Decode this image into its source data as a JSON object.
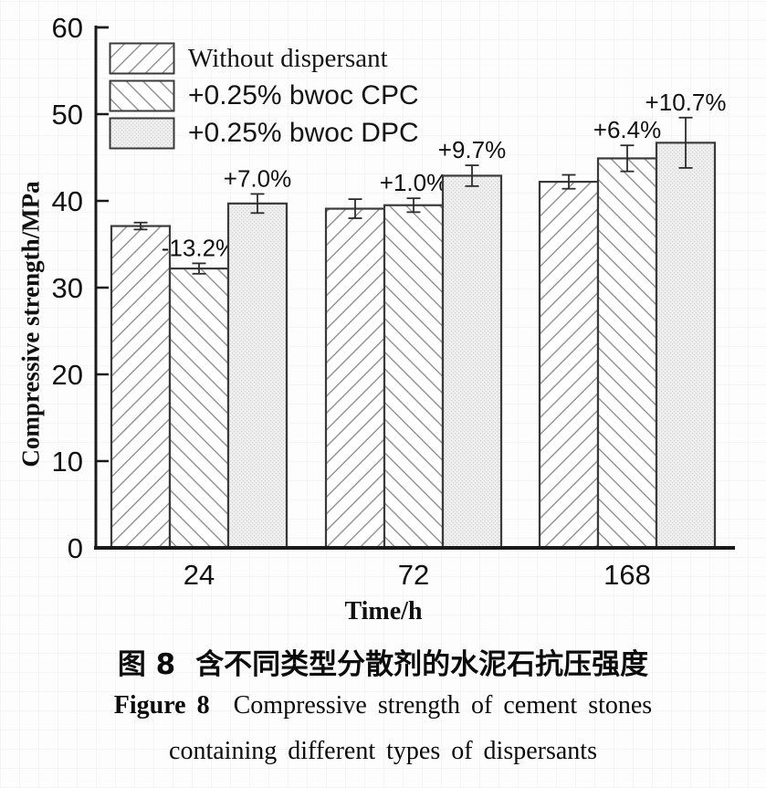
{
  "chart_data": {
    "type": "bar",
    "title": "",
    "xlabel": "Time/h",
    "ylabel": "Compressive strength/MPa",
    "categories": [
      "24",
      "72",
      "168"
    ],
    "ylim": [
      0,
      60
    ],
    "yticks": [
      0,
      10,
      20,
      30,
      40,
      50,
      60
    ],
    "grid": false,
    "legend_position": "top-left",
    "series": [
      {
        "name": "Without dispersant",
        "pattern": "diagonal-forward",
        "values": [
          37.1,
          39.1,
          42.2
        ],
        "errors": [
          0.4,
          1.1,
          0.8
        ],
        "labels": [
          "",
          "",
          ""
        ]
      },
      {
        "name": "+0.25% bwoc CPC",
        "pattern": "diagonal-backward",
        "values": [
          32.2,
          39.5,
          44.9
        ],
        "errors": [
          0.6,
          0.8,
          1.5
        ],
        "labels": [
          "-13.2%",
          "+1.0%",
          "+6.4%"
        ]
      },
      {
        "name": "+0.25% bwoc DPC",
        "pattern": "fine-dot-grid",
        "values": [
          39.7,
          42.9,
          46.7
        ],
        "errors": [
          1.1,
          1.2,
          2.9
        ],
        "labels": [
          "+7.0%",
          "+9.7%",
          "+10.7%"
        ]
      }
    ]
  },
  "caption": {
    "zh_label": "图 8",
    "zh_text": "含不同类型分散剂的水泥石抗压强度",
    "en_label": "Figure 8",
    "en_text": "Compressive strength of cement stones",
    "en_text2": "containing different types of dispersants"
  },
  "colors": {
    "ink": "#111111",
    "axis": "#1a1a1a",
    "bar_border": "#3a3a3a",
    "hatch_line": "#8f8f8f",
    "dot_fill": "#efefef",
    "dot_ink": "#d2d2d2",
    "error_bar": "#2d2d2d"
  }
}
